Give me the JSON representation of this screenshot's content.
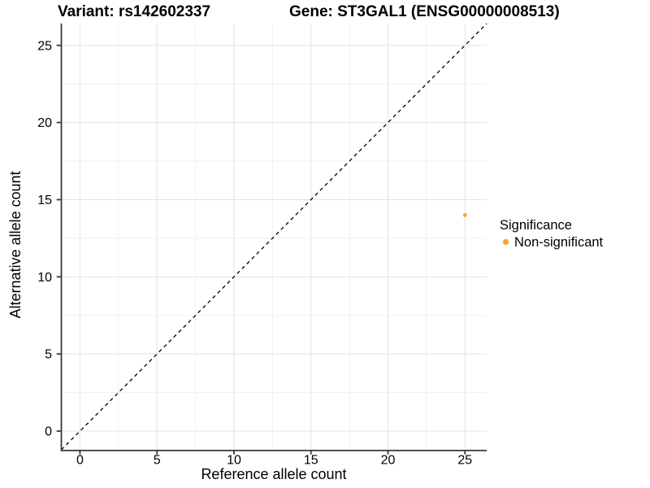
{
  "chart_data": {
    "type": "scatter",
    "title_left": "Variant: rs142602337",
    "title_right": "Gene: ST3GAL1 (ENSG00000008513)",
    "xlabel": "Reference allele count",
    "ylabel": "Alternative allele count",
    "xlim": [
      -1.21,
      26.41
    ],
    "ylim": [
      -1.21,
      26.41
    ],
    "x_ticks": [
      0,
      5,
      10,
      15,
      20,
      25
    ],
    "y_ticks": [
      0,
      5,
      10,
      15,
      20,
      25
    ],
    "minor_grid_step": 2.5,
    "grid": true,
    "reference_line": {
      "kind": "identity y=x",
      "style": "dashed",
      "color": "#000000"
    },
    "points": [
      {
        "x": 25,
        "y": 14,
        "series": "Non-significant"
      }
    ],
    "legend": {
      "title": "Significance",
      "position": "right",
      "items": [
        {
          "label": "Non-significant",
          "color": "#F9A02C"
        }
      ]
    },
    "colors": {
      "point": "#F9A02C",
      "axis_line": "#383838",
      "grid_major": "#E3E3E3",
      "grid_minor": "#F1F1F1",
      "text": "#000000"
    }
  }
}
